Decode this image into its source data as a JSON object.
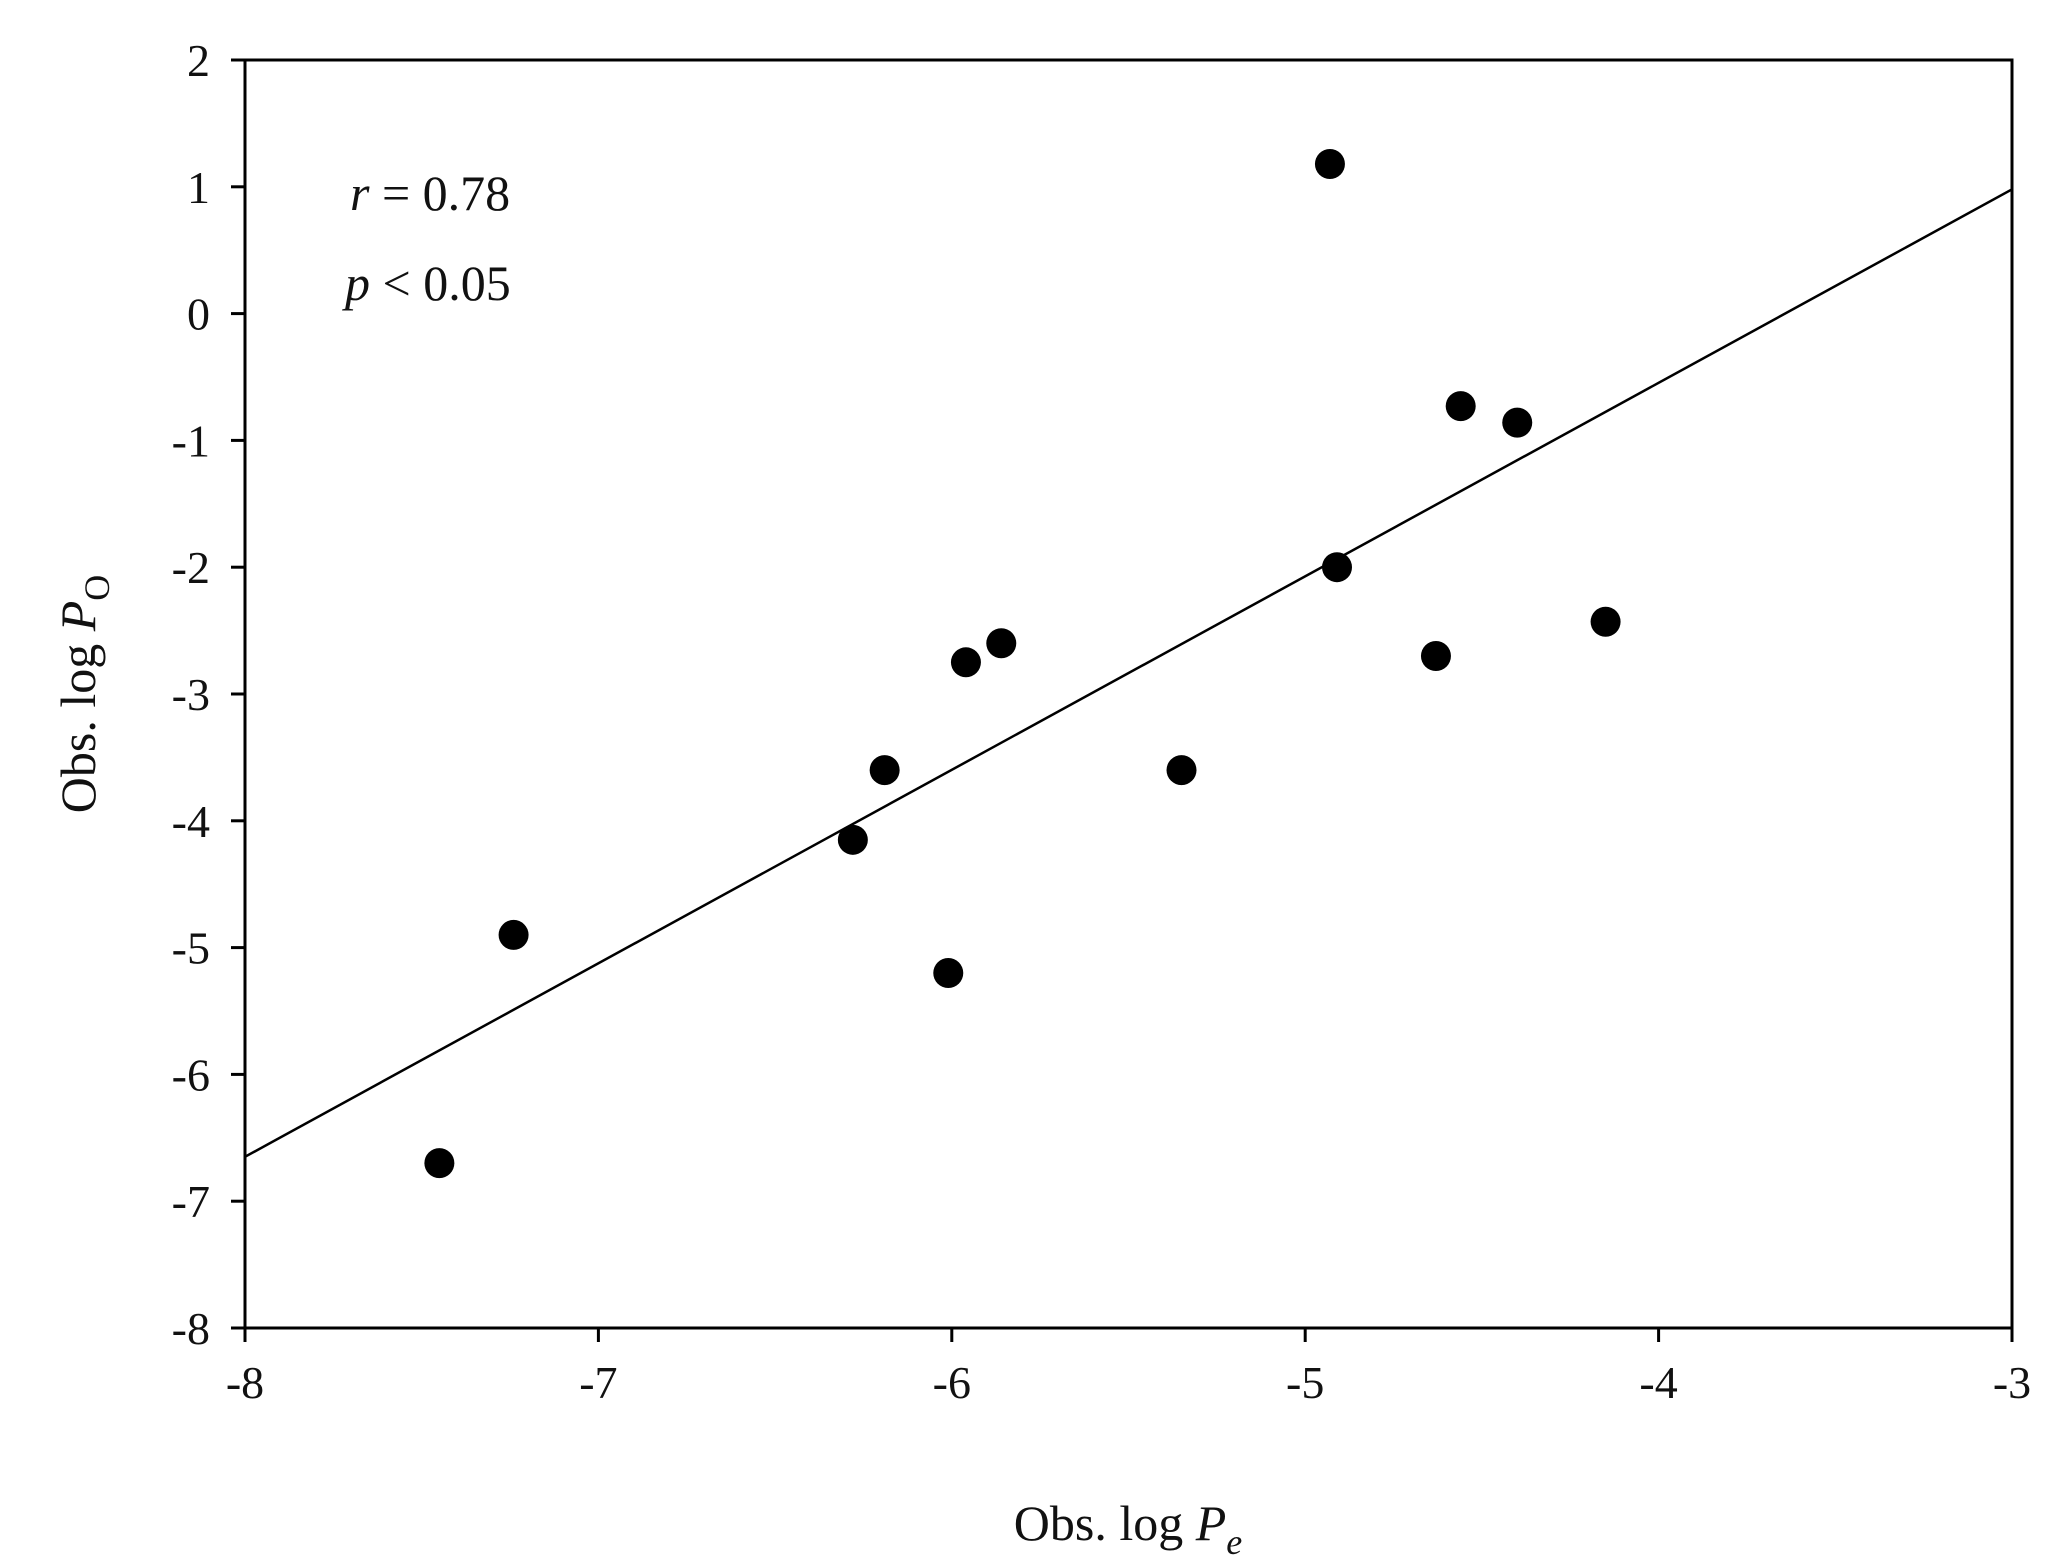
{
  "chart_data": {
    "type": "scatter",
    "xlabel": {
      "prefix": "Obs. log ",
      "var": "P",
      "sub": "e"
    },
    "ylabel": {
      "prefix": "Obs. log ",
      "var": "P",
      "sub": "O"
    },
    "xlim": [
      -8,
      -3
    ],
    "ylim": [
      -8,
      2
    ],
    "x_ticks": [
      -8,
      -7,
      -6,
      -5,
      -4,
      -3
    ],
    "y_ticks": [
      2,
      1,
      0,
      -1,
      -2,
      -3,
      -4,
      -5,
      -6,
      -7,
      -8
    ],
    "x_tick_labels": [
      "-8",
      "-7",
      "-6",
      "-5",
      "-4",
      "-3"
    ],
    "y_tick_labels": [
      "2",
      "1",
      "0",
      "-1",
      "-2",
      "-3",
      "-4",
      "-5",
      "-6",
      "-7",
      "-8"
    ],
    "grid": false,
    "points": [
      {
        "x": -7.45,
        "y": -6.7
      },
      {
        "x": -7.24,
        "y": -4.9
      },
      {
        "x": -6.28,
        "y": -4.15
      },
      {
        "x": -6.19,
        "y": -3.6
      },
      {
        "x": -6.01,
        "y": -5.2
      },
      {
        "x": -5.96,
        "y": -2.75
      },
      {
        "x": -5.86,
        "y": -2.6
      },
      {
        "x": -5.35,
        "y": -3.6
      },
      {
        "x": -4.93,
        "y": 1.18
      },
      {
        "x": -4.91,
        "y": -2.0
      },
      {
        "x": -4.63,
        "y": -2.7
      },
      {
        "x": -4.56,
        "y": -0.73
      },
      {
        "x": -4.4,
        "y": -0.86
      },
      {
        "x": -4.15,
        "y": -2.43
      }
    ],
    "fit_line": {
      "x": [
        -8,
        -3
      ],
      "y": [
        -6.65,
        0.98
      ]
    },
    "annotations": [
      {
        "var": "r",
        "text": " = 0.78"
      },
      {
        "var": "p",
        "text": " < 0.05"
      }
    ],
    "colors": {
      "point": "#000000",
      "line": "#000000",
      "axis": "#000000"
    }
  }
}
